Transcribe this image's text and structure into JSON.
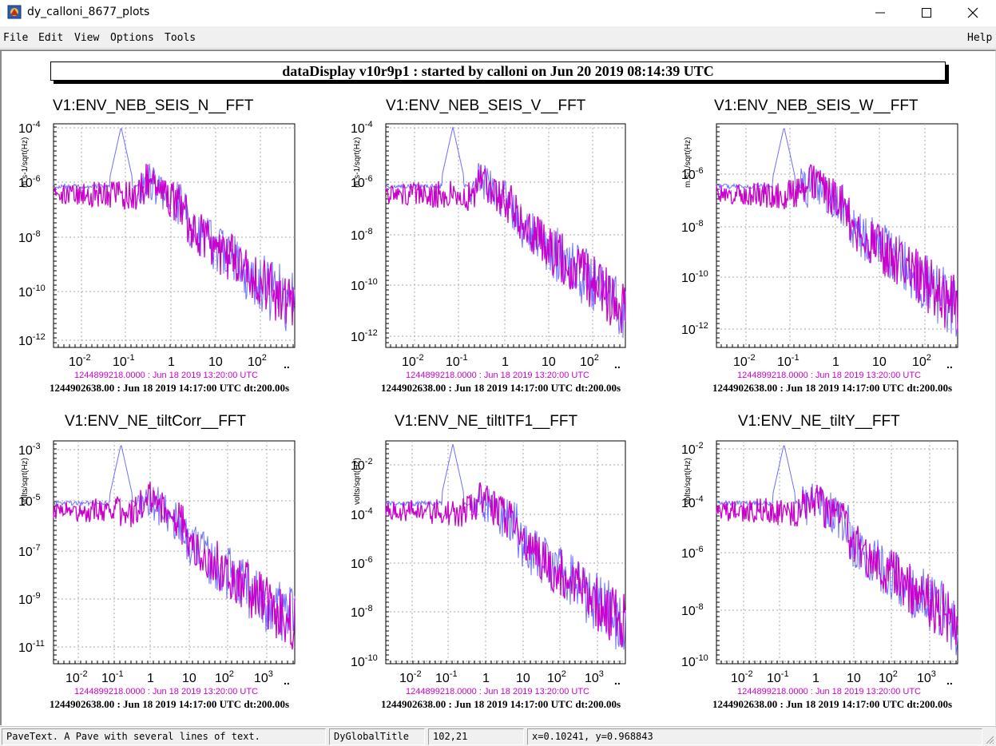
{
  "window": {
    "title": "dy_calloni_8677_plots"
  },
  "menu": {
    "file": "File",
    "edit": "Edit",
    "view": "View",
    "options": "Options",
    "tools": "Tools",
    "help": "Help"
  },
  "global_title": "dataDisplay v10r9p1 : started by calloni on Jun 20 2019 08:14:39 UTC",
  "status": {
    "object_info": "PaveText. A Pave with several lines of text.",
    "object_name": "DyGlobalTitle",
    "pixel_pos": "102,21",
    "ndc_pos": "x=0.10241, y=0.968843"
  },
  "colors": {
    "reference_trace": "#cc00cc",
    "live_trace": "#6f6fff"
  },
  "panels": [
    {
      "title": "V1:ENV_NEB_SEIS_N__FFT",
      "ylabel": "m.s-1/sqrt(Hz)",
      "yticks": [
        "-4",
        "-6",
        "-8",
        "-10",
        "-12"
      ],
      "xticks": [
        "-2",
        "-1",
        "1",
        "10",
        "2"
      ],
      "ref_line": "1244899218.0000 : Jun 18 2019 13:20:00 UTC",
      "live_line": "1244902638.00 : Jun 18 2019 14:17:00 UTC dt:200.00s"
    },
    {
      "title": "V1:ENV_NEB_SEIS_V__FFT",
      "ylabel": "m.s-1/sqrt(Hz)",
      "yticks": [
        "-4",
        "-6",
        "-8",
        "-10",
        "-12"
      ],
      "xticks": [
        "-2",
        "-1",
        "1",
        "10",
        "2"
      ],
      "ref_line": "1244899218.0000 : Jun 18 2019 13:20:00 UTC",
      "live_line": "1244902638.00 : Jun 18 2019 14:17:00 UTC dt:200.00s"
    },
    {
      "title": "V1:ENV_NEB_SEIS_W__FFT",
      "ylabel": "m.s-1/sqrt(Hz)",
      "yticks": [
        "-6",
        "-8",
        "-10",
        "-12"
      ],
      "xticks": [
        "-2",
        "-1",
        "1",
        "10",
        "2"
      ],
      "ref_line": "1244899218.0000 : Jun 18 2019 13:20:00 UTC",
      "live_line": "1244902638.00 : Jun 18 2019 14:17:00 UTC dt:200.00s"
    },
    {
      "title": "V1:ENV_NE_tiltCorr__FFT",
      "ylabel": "volts/sqrt(Hz)",
      "yticks": [
        "-3",
        "-5",
        "-7",
        "-9",
        "-11"
      ],
      "xticks": [
        "-2",
        "-1",
        "1",
        "10",
        "2",
        "3"
      ],
      "ref_line": "1244899218.0000 : Jun 18 2019 13:20:00 UTC",
      "live_line": "1244902638.00 : Jun 18 2019 14:17:00 UTC dt:200.00s"
    },
    {
      "title": "V1:ENV_NE_tiltITF1__FFT",
      "ylabel": "volts/sqrt(Hz)",
      "yticks": [
        "-2",
        "-4",
        "-6",
        "-8",
        "-10"
      ],
      "xticks": [
        "-2",
        "-1",
        "1",
        "10",
        "2",
        "3"
      ],
      "ref_line": "1244899218.0000 : Jun 18 2019 13:20:00 UTC",
      "live_line": "1244902638.00 : Jun 18 2019 14:17:00 UTC dt:200.00s"
    },
    {
      "title": "V1:ENV_NE_tiltY__FFT",
      "ylabel": "volts/sqrt(Hz)",
      "yticks": [
        "-2",
        "-4",
        "-6",
        "-8",
        "-10"
      ],
      "xticks": [
        "-2",
        "-1",
        "1",
        "10",
        "2",
        "3"
      ],
      "ref_line": "1244899218.0000 : Jun 18 2019 13:20:00 UTC",
      "live_line": "1244902638.00 : Jun 18 2019 14:17:00 UTC dt:200.00s"
    }
  ]
}
